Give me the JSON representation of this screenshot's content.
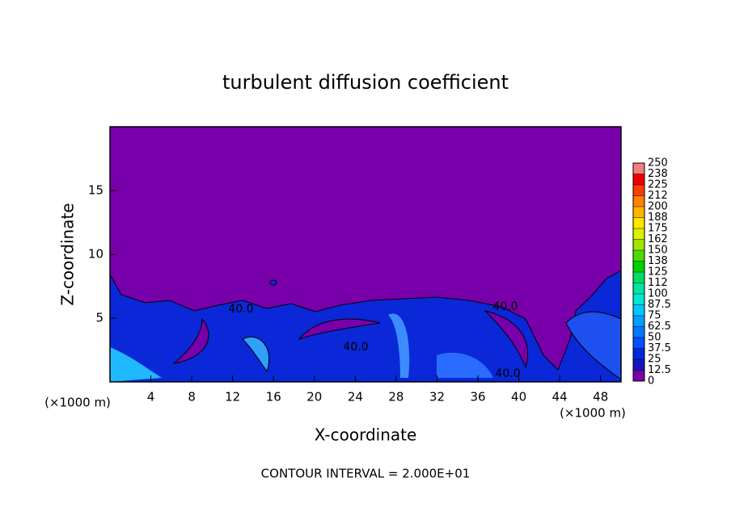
{
  "chart_data": {
    "type": "contour",
    "title": "turbulent diffusion coefficient",
    "x_label": "X-coordinate",
    "y_label": "Z-coordinate",
    "x_unit_label": "(×1000 m)",
    "y_unit_label": "(×1000 m)",
    "footnote": "CONTOUR INTERVAL = 2.000E+01",
    "xlim": [
      0,
      50
    ],
    "xticks": [
      4,
      8,
      12,
      16,
      20,
      24,
      28,
      32,
      36,
      40,
      44,
      48
    ],
    "ylim": [
      0,
      20
    ],
    "yticks": [
      5,
      10,
      15
    ],
    "contour_labels": [
      "40.0",
      "40.0",
      "40.0",
      "40.0"
    ],
    "colorbar": {
      "levels": [
        0,
        12.5,
        25,
        37.5,
        50,
        62.5,
        75,
        87.5,
        100,
        {
          "value": 112.5,
          "label": "112"
        },
        125,
        {
          "value": 137.5,
          "label": "138"
        },
        150,
        {
          "value": 162.5,
          "label": "162"
        },
        175,
        {
          "value": 187.5,
          "label": "188"
        },
        200,
        {
          "value": 212.5,
          "label": "212"
        },
        225,
        {
          "value": 237.5,
          "label": "238"
        },
        250
      ],
      "colors": [
        "#7800aa",
        "#1a14c0",
        "#0028e0",
        "#0050ff",
        "#0078ff",
        "#00a0ff",
        "#00c8ff",
        "#00e6d2",
        "#00e6a0",
        "#00dc64",
        "#00d200",
        "#50dc00",
        "#a0e600",
        "#dcf000",
        "#ffe600",
        "#ffb400",
        "#ff8200",
        "#ff3c00",
        "#f00000",
        "#f08080"
      ]
    }
  }
}
